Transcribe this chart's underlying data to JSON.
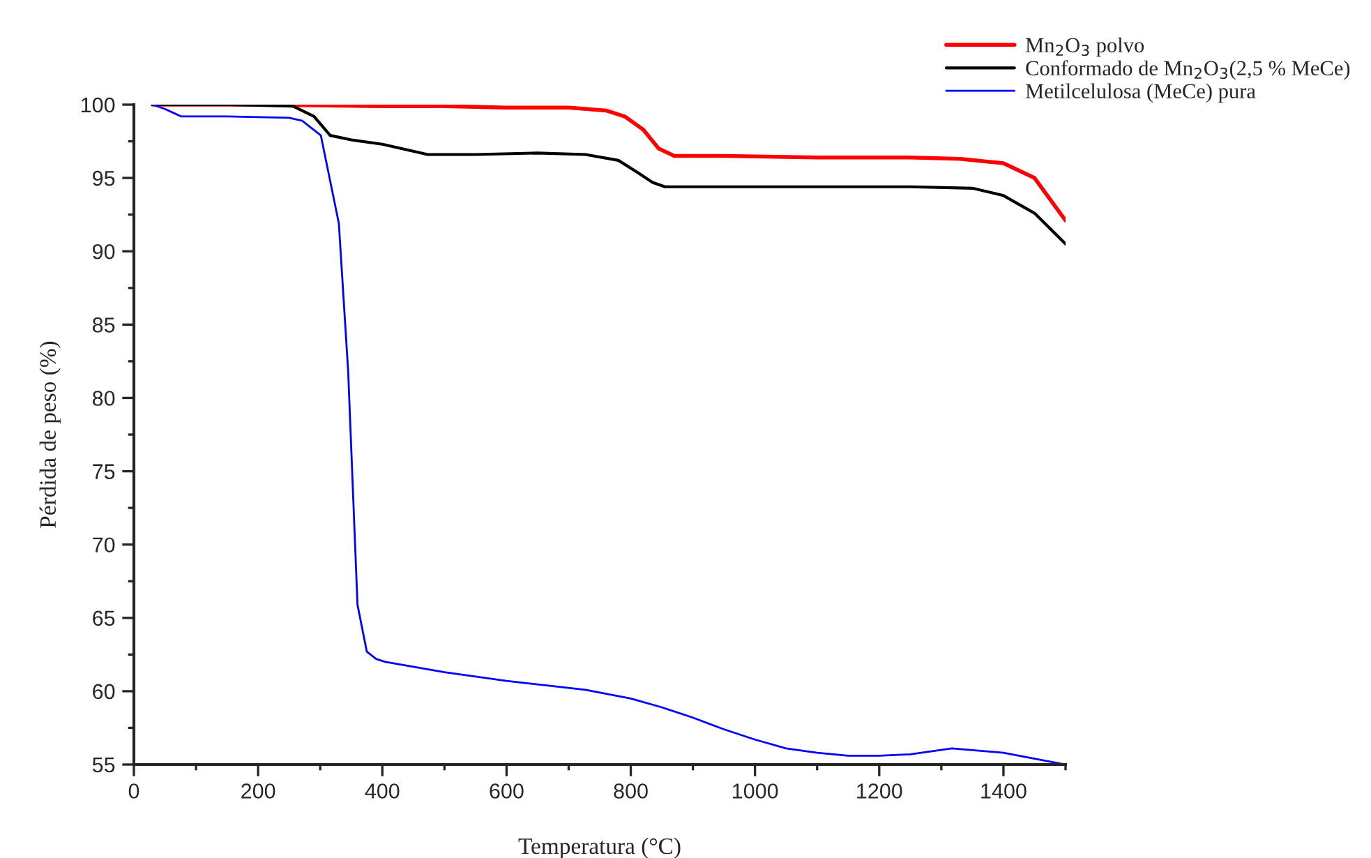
{
  "chart_data": {
    "type": "line",
    "xlabel": "Temperatura (°C)",
    "ylabel": "Pérdida de peso (%)",
    "xlim": [
      0,
      1500
    ],
    "xticks": [
      0,
      200,
      400,
      600,
      800,
      1000,
      1200,
      1400
    ],
    "ylim": [
      55,
      100
    ],
    "yticks": [
      55,
      60,
      65,
      70,
      75,
      80,
      85,
      90,
      95,
      100
    ],
    "grid": false,
    "legend": "top right",
    "marker": "none",
    "line_style": "solid",
    "series": [
      {
        "name": "Mn$_{2}$O$_{3}$ polvo",
        "color": "#ff0000",
        "x": [
          30,
          200,
          400,
          500,
          600,
          700,
          760,
          790,
          820,
          845,
          870,
          950,
          1100,
          1250,
          1330,
          1400,
          1450,
          1500
        ],
        "values": [
          100,
          100,
          99.9,
          99.9,
          99.8,
          99.8,
          99.6,
          99.2,
          98.3,
          97.0,
          96.5,
          96.5,
          96.4,
          96.4,
          96.3,
          96.0,
          95.0,
          92.1
        ]
      },
      {
        "name": "Conformado de Mn$_{2}$O$_{3}$(2,5 % MeCe)",
        "color": "#000000",
        "x": [
          30,
          150,
          256,
          290,
          316,
          350,
          400,
          473,
          550,
          650,
          727,
          780,
          810,
          835,
          855,
          950,
          1100,
          1250,
          1350,
          1400,
          1450,
          1500
        ],
        "values": [
          100,
          100,
          99.9,
          99.2,
          97.9,
          97.6,
          97.3,
          96.6,
          96.6,
          96.7,
          96.6,
          96.2,
          95.4,
          94.7,
          94.4,
          94.4,
          94.4,
          94.4,
          94.3,
          93.8,
          92.6,
          90.5
        ]
      },
      {
        "name": "Metilcelulosa (MeCe) pura",
        "color": "#0000ff",
        "x": [
          30,
          50,
          76,
          150,
          250,
          271,
          301,
          330,
          345,
          360,
          375,
          390,
          405,
          500,
          600,
          727,
          800,
          850,
          900,
          950,
          1000,
          1050,
          1100,
          1150,
          1200,
          1250,
          1317,
          1400,
          1450,
          1500
        ],
        "values": [
          100,
          99.7,
          99.2,
          99.2,
          99.1,
          98.9,
          97.9,
          91.9,
          81.8,
          65.9,
          62.7,
          62.2,
          62.0,
          61.3,
          60.7,
          60.1,
          59.5,
          58.9,
          58.2,
          57.4,
          56.7,
          56.1,
          55.8,
          55.6,
          55.6,
          55.7,
          56.1,
          55.8,
          55.4,
          55.0
        ]
      }
    ]
  }
}
